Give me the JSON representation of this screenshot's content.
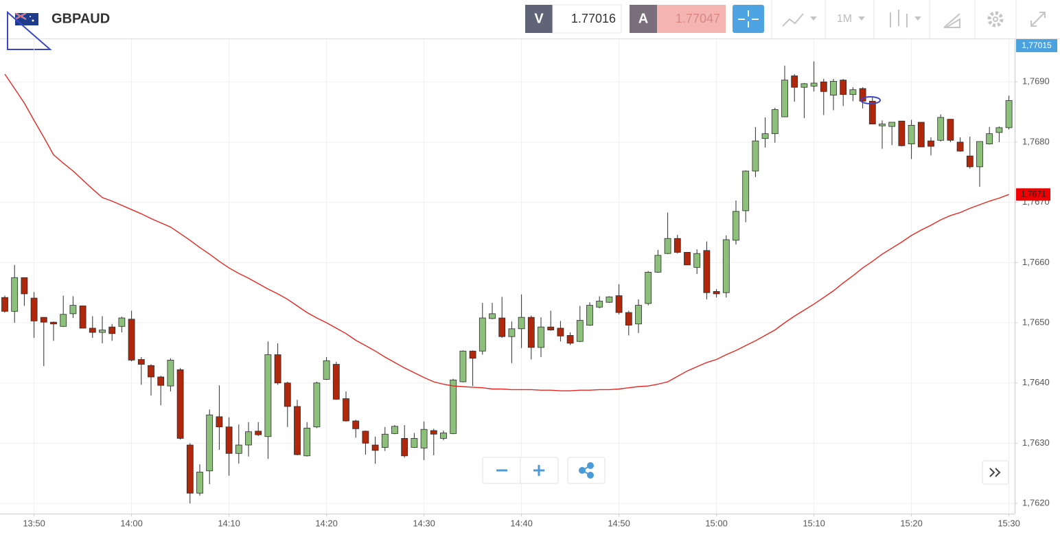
{
  "chart_data": {
    "type": "candlestick",
    "instrument": "GBPAUD",
    "bid_label": "V",
    "bid": 1.77016,
    "ask_label": "A",
    "ask": 1.77047,
    "timeframe": "1M",
    "price_badge": "1,77015",
    "ma_badge": "1,7671",
    "up_color": "#8dc07b",
    "down_color": "#b1270c",
    "grid": true,
    "categories": [
      null,
      null,
      null,
      "13:50",
      null,
      null,
      null,
      null,
      null,
      null,
      null,
      null,
      null,
      "14:00",
      null,
      null,
      null,
      null,
      null,
      null,
      null,
      null,
      null,
      "14:10",
      null,
      null,
      null,
      null,
      null,
      null,
      null,
      null,
      null,
      "14:20",
      null,
      null,
      null,
      null,
      null,
      null,
      null,
      null,
      null,
      "14:30",
      null,
      null,
      null,
      null,
      null,
      null,
      null,
      null,
      null,
      "14:40",
      null,
      null,
      null,
      null,
      null,
      null,
      null,
      null,
      null,
      "14:50",
      null,
      null,
      null,
      null,
      null,
      null,
      null,
      null,
      null,
      "15:00",
      null,
      null,
      null,
      null,
      null,
      null,
      null,
      null,
      null,
      "15:10",
      null,
      null,
      null,
      null,
      null,
      null,
      null,
      null,
      null,
      "15:20",
      null,
      null,
      null,
      null,
      null,
      null,
      null,
      null,
      null,
      "15:30"
    ],
    "open": [
      1.76542,
      1.76519,
      1.76575,
      1.76541,
      1.76509,
      1.76501,
      1.76494,
      1.76515,
      1.76528,
      1.76491,
      1.76484,
      1.76493,
      1.76494,
      1.76506,
      1.76439,
      1.76429,
      1.7641,
      1.76395,
      1.76422,
      1.76297,
      1.76217,
      1.76254,
      1.76344,
      1.76327,
      1.76283,
      1.76297,
      1.7632,
      1.76311,
      1.76447,
      1.764,
      1.76361,
      1.76279,
      1.76327,
      1.76406,
      1.76431,
      1.76374,
      1.76337,
      1.7632,
      1.76297,
      1.76293,
      1.76316,
      1.76308,
      1.76293,
      1.76292,
      1.76321,
      1.76308,
      1.76316,
      1.76402,
      1.76453,
      1.76453,
      1.76507,
      1.76508,
      1.76477,
      1.7649,
      1.76509,
      1.76459,
      1.76493,
      1.76491,
      1.76479,
      1.76469,
      1.76496,
      1.76526,
      1.76534,
      1.76545,
      1.76517,
      1.76498,
      1.76532,
      1.76584,
      1.76615,
      1.7664,
      1.76617,
      1.76592,
      1.7662,
      1.76552,
      1.7655,
      1.76637,
      1.76686,
      1.76752,
      1.76806,
      1.76814,
      1.76842,
      1.7691,
      1.76891,
      1.76893,
      1.769,
      1.76878,
      1.76903,
      1.76879,
      1.76889,
      1.76868,
      1.76827,
      1.76826,
      1.76835,
      1.76797,
      1.76833,
      1.76802,
      1.76803,
      1.76838,
      1.768,
      1.76777,
      1.76759,
      1.76797,
      1.76816,
      1.76824
    ],
    "high": [
      1.76545,
      1.76596,
      1.76575,
      1.76551,
      1.76509,
      1.76502,
      1.76545,
      1.76544,
      1.76528,
      1.76511,
      1.76511,
      1.76498,
      1.7651,
      1.7652,
      1.76443,
      1.76431,
      1.76412,
      1.76441,
      1.76425,
      1.763,
      1.76265,
      1.76356,
      1.76396,
      1.76343,
      1.76331,
      1.76335,
      1.76335,
      1.76469,
      1.76466,
      1.76402,
      1.76372,
      1.76335,
      1.76402,
      1.76443,
      1.76435,
      1.76386,
      1.76339,
      1.76321,
      1.76311,
      1.76327,
      1.7633,
      1.7633,
      1.76317,
      1.76336,
      1.76324,
      1.76321,
      1.76407,
      1.76454,
      1.76454,
      1.76533,
      1.76533,
      1.76543,
      1.76502,
      1.76547,
      1.76512,
      1.76509,
      1.7652,
      1.76503,
      1.76484,
      1.76528,
      1.76534,
      1.76544,
      1.76544,
      1.76564,
      1.7652,
      1.76539,
      1.76586,
      1.76621,
      1.76683,
      1.76646,
      1.76617,
      1.76622,
      1.76635,
      1.76556,
      1.76645,
      1.76703,
      1.76753,
      1.76825,
      1.76841,
      1.76857,
      1.76927,
      1.76913,
      1.76898,
      1.76934,
      1.76905,
      1.76905,
      1.76905,
      1.76891,
      1.76891,
      1.76876,
      1.76836,
      1.76833,
      1.76835,
      1.76837,
      1.76833,
      1.76808,
      1.76846,
      1.76838,
      1.76808,
      1.76809,
      1.76801,
      1.76825,
      1.76826,
      1.76877
    ],
    "low": [
      1.76517,
      1.765,
      1.76528,
      1.76475,
      1.76428,
      1.7647,
      1.76493,
      1.76508,
      1.76491,
      1.76475,
      1.76466,
      1.7647,
      1.76484,
      1.76436,
      1.76397,
      1.76379,
      1.76363,
      1.76386,
      1.76306,
      1.762,
      1.76213,
      1.76232,
      1.76289,
      1.76246,
      1.76266,
      1.76278,
      1.76312,
      1.76274,
      1.76397,
      1.76327,
      1.7628,
      1.76278,
      1.76325,
      1.76405,
      1.76372,
      1.76336,
      1.76309,
      1.76281,
      1.76266,
      1.76287,
      1.76315,
      1.76276,
      1.76292,
      1.76272,
      1.7628,
      1.76305,
      1.76315,
      1.76401,
      1.76395,
      1.76447,
      1.76506,
      1.76475,
      1.76433,
      1.76458,
      1.76439,
      1.76443,
      1.76487,
      1.76469,
      1.76463,
      1.76468,
      1.76495,
      1.76524,
      1.76533,
      1.76514,
      1.76479,
      1.76483,
      1.76529,
      1.76583,
      1.76614,
      1.76615,
      1.76596,
      1.76581,
      1.76539,
      1.76542,
      1.76542,
      1.7663,
      1.76667,
      1.76742,
      1.76791,
      1.76799,
      1.76842,
      1.76867,
      1.7684,
      1.76884,
      1.76845,
      1.76853,
      1.7686,
      1.76868,
      1.76856,
      1.7683,
      1.76789,
      1.76795,
      1.76793,
      1.76772,
      1.76792,
      1.76778,
      1.76801,
      1.768,
      1.76784,
      1.76756,
      1.76726,
      1.76796,
      1.768,
      1.76821
    ],
    "close": [
      1.76519,
      1.76575,
      1.76548,
      1.76503,
      1.76501,
      1.76498,
      1.76514,
      1.76529,
      1.76491,
      1.76484,
      1.76488,
      1.76482,
      1.76508,
      1.76438,
      1.76431,
      1.7641,
      1.76396,
      1.76438,
      1.76308,
      1.76217,
      1.76252,
      1.76347,
      1.76327,
      1.76283,
      1.76297,
      1.76319,
      1.76314,
      1.76447,
      1.764,
      1.76361,
      1.76281,
      1.76325,
      1.764,
      1.76437,
      1.76373,
      1.76337,
      1.76324,
      1.763,
      1.76288,
      1.76315,
      1.76328,
      1.76279,
      1.76308,
      1.76323,
      1.76315,
      1.76317,
      1.76405,
      1.76453,
      1.76441,
      1.76508,
      1.76515,
      1.76477,
      1.7649,
      1.76509,
      1.76459,
      1.76493,
      1.76488,
      1.76478,
      1.76466,
      1.76504,
      1.76529,
      1.76536,
      1.76543,
      1.76517,
      1.76496,
      1.76529,
      1.76584,
      1.76612,
      1.7664,
      1.76617,
      1.76596,
      1.76615,
      1.7655,
      1.76548,
      1.76638,
      1.76685,
      1.76752,
      1.76802,
      1.76814,
      1.76854,
      1.76903,
      1.76891,
      1.76897,
      1.76898,
      1.76884,
      1.76901,
      1.76879,
      1.76887,
      1.76868,
      1.7683,
      1.7683,
      1.76833,
      1.76794,
      1.76828,
      1.76792,
      1.76793,
      1.76841,
      1.76803,
      1.76785,
      1.76759,
      1.76801,
      1.76814,
      1.76824,
      1.76869
    ],
    "moving_average": {
      "color": "#e8251f",
      "values": [
        1.76913,
        1.76889,
        1.76865,
        1.76836,
        1.76808,
        1.76779,
        1.76765,
        1.76752,
        1.76737,
        1.76722,
        1.76708,
        1.76702,
        1.76695,
        1.76688,
        1.76681,
        1.76673,
        1.76666,
        1.76659,
        1.76648,
        1.76637,
        1.76625,
        1.76614,
        1.76602,
        1.76591,
        1.76582,
        1.76574,
        1.76565,
        1.76556,
        1.76548,
        1.76539,
        1.76528,
        1.76517,
        1.76508,
        1.765,
        1.76491,
        1.76482,
        1.76471,
        1.76462,
        1.76453,
        1.76443,
        1.76434,
        1.76425,
        1.76417,
        1.76409,
        1.76402,
        1.76398,
        1.76395,
        1.76394,
        1.76393,
        1.76392,
        1.7639,
        1.7639,
        1.76389,
        1.76389,
        1.76389,
        1.76388,
        1.76388,
        1.76387,
        1.76387,
        1.76388,
        1.76388,
        1.76389,
        1.76389,
        1.7639,
        1.76392,
        1.76394,
        1.76395,
        1.76398,
        1.76402,
        1.76411,
        1.7642,
        1.76427,
        1.76434,
        1.76439,
        1.76447,
        1.76454,
        1.76462,
        1.7647,
        1.76479,
        1.76488,
        1.765,
        1.76511,
        1.76521,
        1.76531,
        1.76542,
        1.76553,
        1.76566,
        1.76578,
        1.76591,
        1.76602,
        1.76614,
        1.76624,
        1.76634,
        1.76645,
        1.76654,
        1.76662,
        1.76671,
        1.76678,
        1.76683,
        1.7669,
        1.76696,
        1.76702,
        1.76707,
        1.76713
      ]
    },
    "ylim": [
      1.76183,
      1.76971
    ],
    "yticks": [
      {
        "value": 1.762,
        "label": "1,7620"
      },
      {
        "value": 1.763,
        "label": "1,7630"
      },
      {
        "value": 1.764,
        "label": "1,7640"
      },
      {
        "value": 1.765,
        "label": "1,7650"
      },
      {
        "value": 1.766,
        "label": "1,7660"
      },
      {
        "value": 1.767,
        "label": "1,7670"
      },
      {
        "value": 1.768,
        "label": "1,7680"
      },
      {
        "value": 1.769,
        "label": "1,7690"
      }
    ]
  }
}
